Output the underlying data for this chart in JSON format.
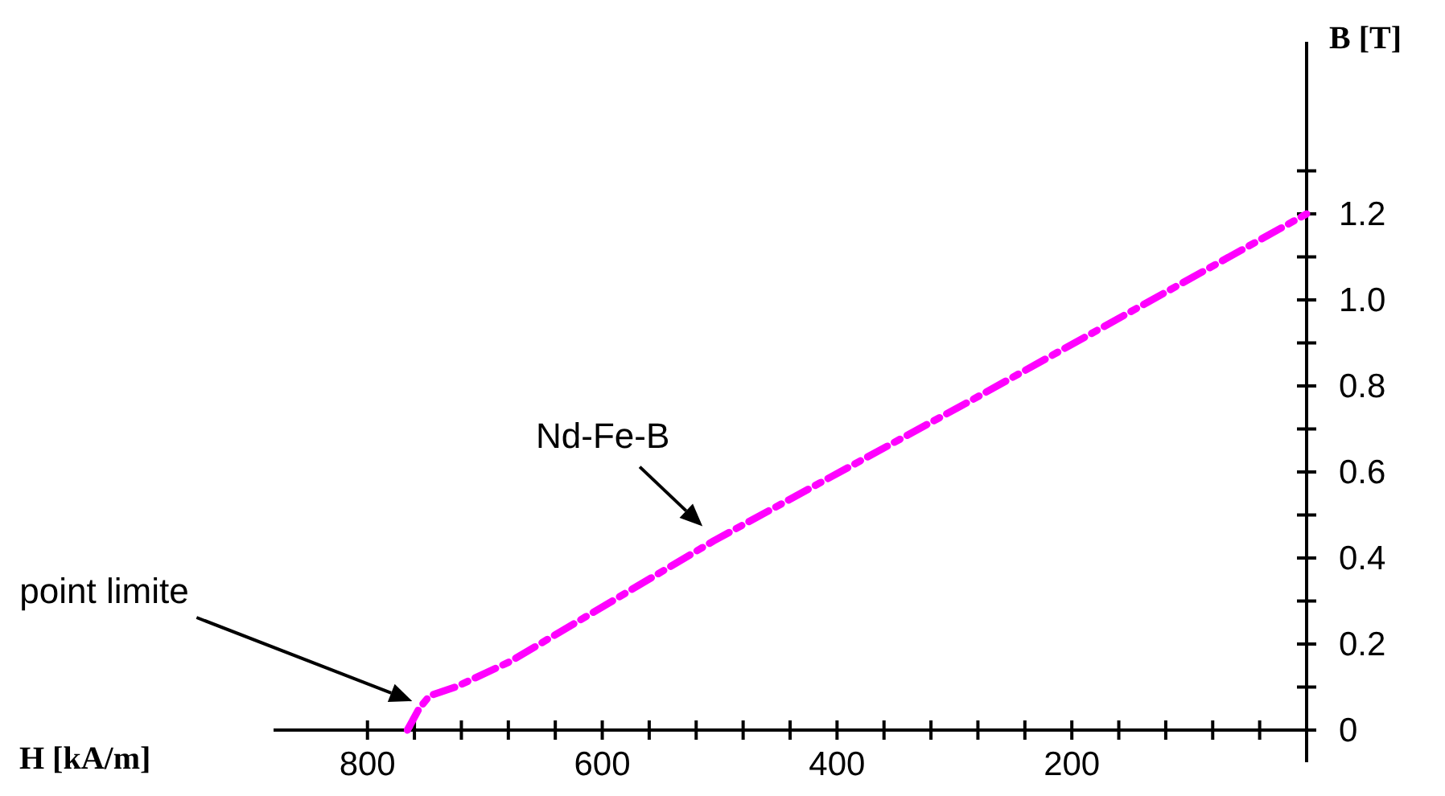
{
  "chart_data": {
    "type": "line",
    "xlabel": "H [kA/m]",
    "ylabel": "B [T]",
    "xlim": [
      880,
      0
    ],
    "ylim": [
      0,
      1.6
    ],
    "xticks": [
      800,
      {
        "value": 760,
        "label": null
      },
      {
        "value": 720,
        "label": null
      },
      {
        "value": 680,
        "label": null
      },
      {
        "value": 640,
        "label": null
      },
      600,
      {
        "value": 560,
        "label": null
      },
      {
        "value": 520,
        "label": null
      },
      {
        "value": 480,
        "label": null
      },
      {
        "value": 440,
        "label": null
      },
      400,
      {
        "value": 360,
        "label": null
      },
      {
        "value": 320,
        "label": null
      },
      {
        "value": 280,
        "label": null
      },
      {
        "value": 240,
        "label": null
      },
      200,
      {
        "value": 160,
        "label": null
      },
      {
        "value": 120,
        "label": null
      },
      {
        "value": 80,
        "label": null
      },
      {
        "value": 40,
        "label": null
      }
    ],
    "yticks": [
      0,
      {
        "value": 0.1,
        "label": null
      },
      0.2,
      {
        "value": 0.3,
        "label": null
      },
      0.4,
      {
        "value": 0.5,
        "label": null
      },
      0.6,
      {
        "value": 0.7,
        "label": null
      },
      0.8,
      {
        "value": 0.9,
        "label": null
      },
      {
        "value": 1.0,
        "label": "1.0"
      },
      {
        "value": 1.1,
        "label": null
      },
      1.2,
      {
        "value": 1.3,
        "label": null
      }
    ],
    "series": [
      {
        "color": "#ff00ff",
        "x": [
          766,
          756,
          747,
          725,
          678,
          610,
          505,
          290,
          0
        ],
        "values": [
          0,
          0.05,
          0.08,
          0.1,
          0.16,
          0.27,
          0.44,
          0.76,
          1.2
        ]
      }
    ],
    "line_style": "dashed",
    "grid": false,
    "annotations": [
      {
        "text": "Nd-Fe-B",
        "x": 505,
        "y": 0.44
      },
      "point limite"
    ]
  }
}
